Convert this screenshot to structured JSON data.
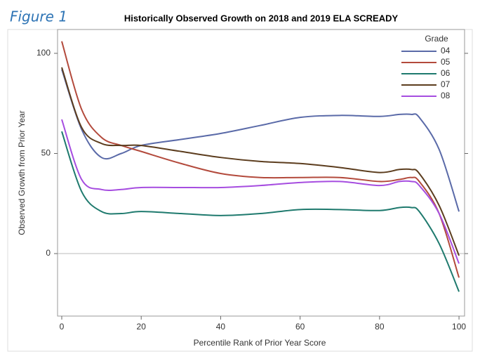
{
  "figure_label": "Figure 1",
  "chart_data": {
    "type": "line",
    "title": "Historically Observed Growth on 2018 and 2019 ELA SCREADY",
    "x_label": "Percentile Rank of Prior Year Score",
    "y_label": "Observed Growth from Prior Year",
    "x": [
      0,
      5,
      10,
      15,
      20,
      30,
      40,
      50,
      60,
      70,
      80,
      85,
      88,
      90,
      95,
      100
    ],
    "series": [
      {
        "name": "04",
        "color": "#5a6aa8",
        "values": [
          92,
          62,
          48,
          50,
          54,
          57,
          60,
          64,
          68,
          69,
          68.5,
          69.5,
          69.5,
          68,
          52,
          21
        ]
      },
      {
        "name": "05",
        "color": "#b34a3c",
        "values": [
          106,
          72,
          58,
          54,
          51,
          45,
          40,
          38,
          38,
          38,
          36,
          37,
          38,
          36,
          20,
          -12
        ]
      },
      {
        "name": "06",
        "color": "#1f7a6e",
        "values": [
          61,
          31,
          21,
          20,
          21,
          20,
          19,
          20,
          22,
          22,
          21.5,
          23,
          23,
          21,
          5,
          -19
        ]
      },
      {
        "name": "07",
        "color": "#5c3d1e",
        "values": [
          93,
          63,
          55,
          54,
          54,
          51,
          48,
          46,
          45,
          43,
          40.5,
          42,
          42,
          40,
          24,
          -1
        ]
      },
      {
        "name": "08",
        "color": "#a64de0",
        "values": [
          67,
          37,
          32,
          32,
          33,
          33,
          33,
          34,
          35.5,
          36,
          34,
          36,
          36,
          34,
          20,
          -5
        ]
      }
    ],
    "legend_title": "Grade",
    "legend_position": "top-right",
    "xlim": [
      -1.06,
      101.4
    ],
    "ylim": [
      -31.2,
      111.9
    ],
    "xticks": [
      0,
      20,
      40,
      60,
      80,
      100
    ],
    "yticks": [
      0,
      50,
      100
    ],
    "reference_line": 0
  }
}
